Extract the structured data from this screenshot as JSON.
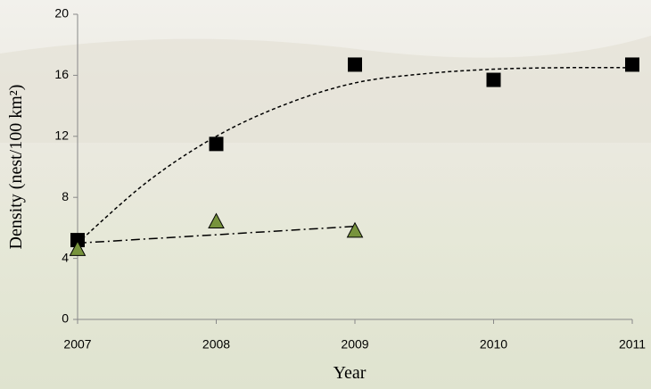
{
  "chart_data": {
    "type": "scatter",
    "x_label": "Year",
    "y_label": "Density (nest/100 km²)",
    "xlim": [
      2007,
      2011
    ],
    "xticks": [
      2007,
      2008,
      2009,
      2010,
      2011
    ],
    "ylim": [
      0,
      20
    ],
    "yticks": [
      0,
      4,
      8,
      12,
      16,
      20
    ],
    "series": [
      {
        "marker": "square",
        "color": "#000000",
        "x": [
          2007,
          2008,
          2009,
          2010,
          2011
        ],
        "values": [
          5.2,
          11.5,
          16.7,
          15.7,
          16.7
        ]
      },
      {
        "marker": "triangle",
        "color": "#77933c",
        "x": [
          2007,
          2008,
          2009
        ],
        "values": [
          4.6,
          6.4,
          5.8
        ]
      },
      {
        "marker": "none",
        "line": "dashed",
        "color": "#000000",
        "x": [
          2007,
          2007.5,
          2008,
          2008.5,
          2009,
          2009.5,
          2010,
          2010.5,
          2011
        ],
        "values": [
          5.0,
          9.0,
          12.0,
          14.1,
          15.5,
          16.1,
          16.4,
          16.5,
          16.5
        ]
      },
      {
        "marker": "none",
        "line": "dashdot",
        "color": "#000000",
        "x": [
          2007,
          2009
        ],
        "values": [
          5.0,
          6.1
        ]
      }
    ]
  }
}
